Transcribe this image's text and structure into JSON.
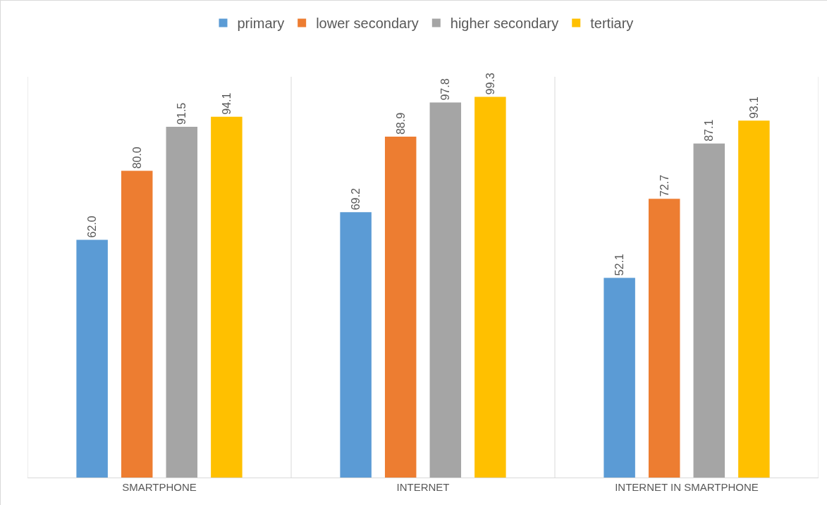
{
  "chart_data": {
    "type": "bar",
    "categories": [
      "SMARTPHONE",
      "INTERNET",
      "INTERNET IN SMARTPHONE"
    ],
    "series": [
      {
        "name": "primary",
        "color": "#5b9bd5",
        "values": [
          62.0,
          69.2,
          52.1
        ],
        "value_labels": [
          "62.0",
          "69.2",
          "52.1"
        ]
      },
      {
        "name": "lower secondary",
        "color": "#ed7d31",
        "values": [
          80.0,
          88.9,
          72.7
        ],
        "value_labels": [
          "80.0",
          "88.9",
          "72.7"
        ]
      },
      {
        "name": "higher secondary",
        "color": "#a5a5a5",
        "values": [
          91.5,
          97.8,
          87.1
        ],
        "value_labels": [
          "91.5",
          "97.8",
          "87.1"
        ]
      },
      {
        "name": "tertiary",
        "color": "#ffc000",
        "values": [
          94.1,
          99.3,
          93.1
        ],
        "value_labels": [
          "94.1",
          "99.3",
          "93.1"
        ]
      }
    ],
    "legend": "top",
    "grid": "x",
    "tick_labels": "x"
  }
}
